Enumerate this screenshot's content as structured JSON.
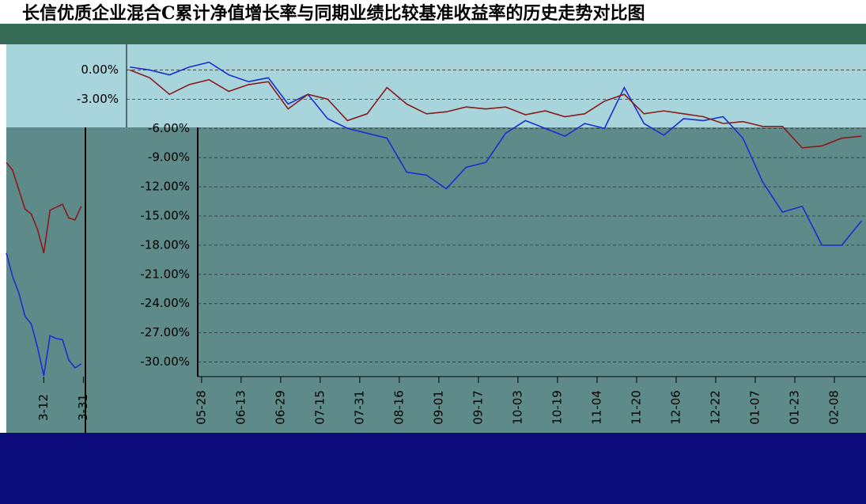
{
  "chart_data": [
    {
      "type": "line",
      "title": "长信优质企业混合C累计净值增长率与同期业绩比较基准收益率的历史走势对比图",
      "x": [
        -29,
        -21,
        -13,
        -5,
        3,
        11,
        19,
        27,
        35,
        43,
        51,
        59,
        67,
        75,
        83,
        91,
        99,
        107,
        115,
        123,
        131,
        139,
        147,
        155,
        163,
        171,
        179,
        187,
        195,
        203,
        211,
        219,
        227,
        235,
        243,
        251,
        259,
        267
      ],
      "series": [
        {
          "color": "#1a2fd0",
          "values": [
            0.3,
            0,
            -0.5,
            0.3,
            0.8,
            -0.5,
            -1.2,
            -0.8,
            -3.5,
            -2.5,
            -5,
            -6,
            -6.5,
            -7,
            -10.5,
            -10.8,
            -12.2,
            -10,
            -9.5,
            -6.5,
            -5.2,
            -6,
            -6.8,
            -5.5,
            -6,
            -1.8,
            -5.5,
            -6.7,
            -5,
            -5.2,
            -4.8,
            -7,
            -11.5,
            -14.6,
            -14,
            -18,
            -18,
            -15.5
          ]
        },
        {
          "color": "#8b1a1a",
          "values": [
            0,
            -0.8,
            -2.5,
            -1.5,
            -1,
            -2.2,
            -1.5,
            -1.2,
            -4,
            -2.5,
            -3,
            -5.2,
            -4.5,
            -1.8,
            -3.5,
            -4.5,
            -4.3,
            -3.8,
            -4,
            -3.8,
            -4.6,
            -4.2,
            -4.8,
            -4.5,
            -3.2,
            -2.5,
            -4.5,
            -4.2,
            -4.5,
            -4.8,
            -5.5,
            -5.3,
            -5.8,
            -5.8,
            -8,
            -7.8,
            -7,
            -6.8
          ]
        }
      ],
      "xlim": [
        -29.4,
        268.8
      ],
      "xticks": [
        {
          "value": 0,
          "label": "05-28"
        },
        {
          "value": 16,
          "label": "06-13"
        },
        {
          "value": 32,
          "label": "06-29"
        },
        {
          "value": 48,
          "label": "07-15"
        },
        {
          "value": 64,
          "label": "07-31"
        },
        {
          "value": 80,
          "label": "08-16"
        },
        {
          "value": 96,
          "label": "09-01"
        },
        {
          "value": 112,
          "label": "09-17"
        },
        {
          "value": 128,
          "label": "10-03"
        },
        {
          "value": 144,
          "label": "10-19"
        },
        {
          "value": 160,
          "label": "11-04"
        },
        {
          "value": 176,
          "label": "11-20"
        },
        {
          "value": 192,
          "label": "12-06"
        },
        {
          "value": 208,
          "label": "12-22"
        },
        {
          "value": 224,
          "label": "01-07"
        },
        {
          "value": 240,
          "label": "01-23"
        },
        {
          "value": 256,
          "label": "02-08"
        }
      ],
      "ylim": [
        -31.5,
        1.5
      ],
      "yticks": [
        {
          "value": 0,
          "label": "0.00%"
        },
        {
          "value": -3,
          "label": "-3.00%"
        },
        {
          "value": -6,
          "label": "-6.00%"
        },
        {
          "value": -9,
          "label": "-9.00%"
        },
        {
          "value": -12,
          "label": "-12.00%"
        },
        {
          "value": -15,
          "label": "-15.00%"
        },
        {
          "value": -18,
          "label": "-18.00%"
        },
        {
          "value": -21,
          "label": "-21.00%"
        },
        {
          "value": -24,
          "label": "-24.00%"
        },
        {
          "value": -27,
          "label": "-27.00%"
        },
        {
          "value": -30,
          "label": "-30.00%"
        }
      ],
      "grid": true
    },
    {
      "type": "line",
      "x": [
        -13,
        -10,
        -7,
        -4,
        -1,
        2,
        5,
        8,
        11,
        14,
        17,
        20,
        23
      ],
      "series": [
        {
          "color": "#8b1a1a",
          "values": [
            -9.5,
            -10.3,
            -12.3,
            -14.3,
            -14.8,
            -16.4,
            -18.8,
            -14.4,
            -14.1,
            -13.8,
            -15.2,
            -15.4,
            -14.0
          ]
        },
        {
          "color": "#1a2fd0",
          "values": [
            -18.8,
            -21.2,
            -22.9,
            -25.3,
            -26.1,
            -28.5,
            -31.4,
            -27.3,
            -27.6,
            -27.7,
            -29.8,
            -30.6,
            -30.2
          ]
        }
      ],
      "xlim": [
        -13,
        25
      ],
      "xticks": [
        {
          "value": 5,
          "label": "3-12"
        },
        {
          "value": 24,
          "label": "3-31"
        }
      ],
      "ylim": [
        -31.5,
        1.5
      ]
    }
  ]
}
